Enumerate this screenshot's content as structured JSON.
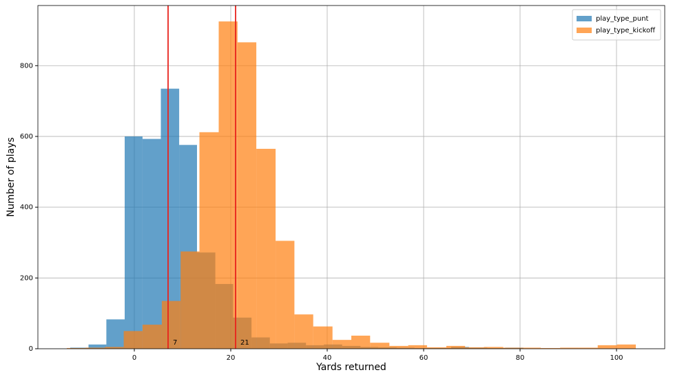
{
  "chart_data": {
    "type": "histogram",
    "xlabel": "Yards returned",
    "ylabel": "Number of plays",
    "xlim": [
      -20,
      110
    ],
    "ylim": [
      0,
      970
    ],
    "xticks": [
      0,
      20,
      40,
      60,
      80,
      100
    ],
    "yticks": [
      0,
      200,
      400,
      600,
      800
    ],
    "grid": true,
    "legend": "upper right",
    "alpha": 0.7,
    "series": [
      {
        "name": "play_type_punt",
        "color": "#1f77b4",
        "bins": [
          -13.3,
          -9.5,
          -5.8,
          -2.0,
          1.7,
          5.5,
          9.3,
          13.0,
          16.8,
          20.5,
          24.3,
          28.1,
          31.8,
          35.6,
          39.3,
          43.1,
          46.9,
          50.6,
          54.4,
          58.1,
          61.9,
          65.7,
          69.4,
          73.2,
          76.9,
          80.7
        ],
        "values": [
          3,
          12,
          83,
          600,
          593,
          735,
          576,
          272,
          183,
          88,
          32,
          15,
          17,
          10,
          12,
          8,
          5,
          4,
          3,
          2,
          2,
          5,
          3,
          2,
          3
        ]
      },
      {
        "name": "play_type_kickoff",
        "color": "#ff7f0e",
        "bins": [
          -14,
          -10.1,
          -6.1,
          -2.2,
          1.7,
          5.7,
          9.6,
          13.5,
          17.5,
          21.4,
          25.3,
          29.3,
          33.2,
          37.1,
          41.1,
          45,
          48.9,
          52.9,
          56.8,
          60.7,
          64.7,
          68.6,
          72.5,
          76.5,
          80.4,
          84.3,
          88.3,
          92.2,
          96.1,
          100.1,
          104
        ],
        "values": [
          2,
          3,
          5,
          50,
          68,
          135,
          275,
          612,
          925,
          866,
          565,
          305,
          97,
          63,
          25,
          37,
          17,
          8,
          10,
          4,
          8,
          4,
          5,
          3,
          3,
          2,
          3,
          3,
          10,
          12
        ]
      }
    ],
    "vlines": [
      7,
      21
    ],
    "vline_color": "#e8221c"
  }
}
